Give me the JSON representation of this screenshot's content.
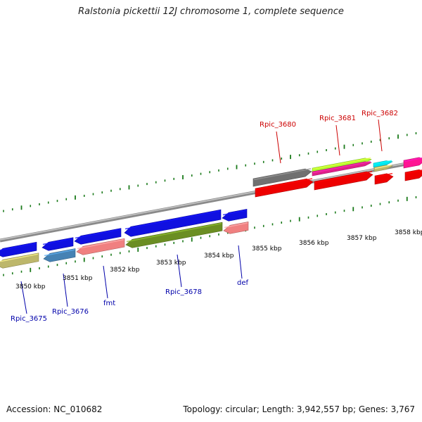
{
  "title": "Ralstonia pickettii 12J chromosome 1, complete sequence",
  "footer": {
    "accession": "Accession: NC_010682",
    "summary": "Topology: circular; Length: 3,942,557 bp; Genes: 3,767"
  },
  "colors": {
    "backbone": "#8a8a8a",
    "tick": "#1a7a1a",
    "top_label": "#cc0000",
    "bottom_label": "#0000aa",
    "coord_label": "#000000"
  },
  "coordinate_labels": [
    {
      "text": "3850 kbp"
    },
    {
      "text": "3851 kbp"
    },
    {
      "text": "3852 kbp"
    },
    {
      "text": "3853 kbp"
    },
    {
      "text": "3854 kbp"
    },
    {
      "text": "3855 kbp"
    },
    {
      "text": "3856 kbp"
    },
    {
      "text": "3857 kbp"
    },
    {
      "text": "3858 kbp"
    }
  ],
  "gene_labels_top": [
    {
      "text": "Rpic_3680"
    },
    {
      "text": "Rpic_3681"
    },
    {
      "text": "Rpic_3682"
    }
  ],
  "gene_labels_bottom": [
    {
      "text": "Rpic_3675"
    },
    {
      "text": "Rpic_3676"
    },
    {
      "text": "fmt"
    },
    {
      "text": "Rpic_3678"
    },
    {
      "text": "def"
    }
  ],
  "features": [
    {
      "name": "feature-blue-left-edge",
      "color": "#1010e0",
      "strand": "-"
    },
    {
      "name": "feature-khaki-left-edge",
      "color": "#bdb76b",
      "strand": "-"
    },
    {
      "name": "feature-blue-3676",
      "color": "#1010e0",
      "strand": "-"
    },
    {
      "name": "feature-steelblue-3676",
      "color": "#4682b4",
      "strand": "-"
    },
    {
      "name": "feature-blue-fmt",
      "color": "#1010e0",
      "strand": "-"
    },
    {
      "name": "feature-salmon-fmt",
      "color": "#f08080",
      "strand": "-"
    },
    {
      "name": "feature-blue-3678",
      "color": "#1010e0",
      "strand": "-"
    },
    {
      "name": "feature-olive-3678",
      "color": "#6b8e23",
      "strand": "-"
    },
    {
      "name": "feature-blue-def",
      "color": "#1010e0",
      "strand": "-"
    },
    {
      "name": "feature-salmon-def",
      "color": "#f08080",
      "strand": "-"
    },
    {
      "name": "feature-gray-3680",
      "color": "#707070",
      "strand": "+"
    },
    {
      "name": "feature-red-3680",
      "color": "#ee0000",
      "strand": "+"
    },
    {
      "name": "feature-lime-3681",
      "color": "#adff2f",
      "strand": "+"
    },
    {
      "name": "feature-magenta-3681",
      "color": "#e0208a",
      "strand": "+"
    },
    {
      "name": "feature-red-3681",
      "color": "#ee0000",
      "strand": "+"
    },
    {
      "name": "feature-cyan-3682",
      "color": "#00e5ee",
      "strand": "+"
    },
    {
      "name": "feature-khaki-3682",
      "color": "#bdb76b",
      "strand": "+"
    },
    {
      "name": "feature-red-3682",
      "color": "#ee0000",
      "strand": "+"
    },
    {
      "name": "feature-magenta-right-edge",
      "color": "#ff1493",
      "strand": "+"
    },
    {
      "name": "feature-red-right-edge",
      "color": "#ee0000",
      "strand": "+"
    }
  ]
}
